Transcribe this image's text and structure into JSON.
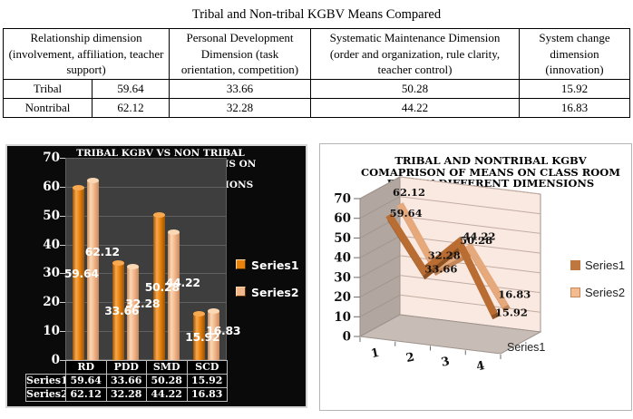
{
  "doc": {
    "title": "Tribal and Non-tribal KGBV Means Compared",
    "table": {
      "headers": [
        "Relationship dimension (involvement, affiliation, teacher support)",
        "Personal Development Dimension (task orientation, competition)",
        "Systematic Maintenance Dimension (order and organization, rule clarity, teacher control)",
        "System change dimension (innovation)"
      ],
      "rows": [
        {
          "label": "Tribal",
          "values": [
            "59.64",
            "33.66",
            "50.28",
            "15.92"
          ]
        },
        {
          "label": "Nontribal",
          "values": [
            "62.12",
            "32.28",
            "44.22",
            "16.83"
          ]
        }
      ]
    }
  },
  "chart_data": [
    {
      "type": "bar",
      "title": "TRIBAL KGBV VS NON TRIBAL KGBVCOMPARISON OF MEANS ON CLASSROOM ENV IN DIFFERENT DIMENSIONS",
      "title_lines": [
        "TRIBAL KGBV VS NON TRIBAL",
        "KGBVCOMPARISON OF MEANS ON CLASSROOM",
        "ENV IN DIFFERENT DIMENSIONS"
      ],
      "categories": [
        "RD",
        "PDD",
        "SMD",
        "SCD"
      ],
      "series": [
        {
          "name": "Series1",
          "values": [
            59.64,
            33.66,
            50.28,
            15.92
          ],
          "color": "#e8820d",
          "color_light": "#f9a94f",
          "color_dark": "#9a5406"
        },
        {
          "name": "Series2",
          "values": [
            62.12,
            32.28,
            44.22,
            16.83
          ],
          "color": "#f2b68c",
          "color_light": "#fbd8b4",
          "color_dark": "#c98a5c"
        }
      ],
      "ylim": [
        0,
        70
      ],
      "ytick": 10,
      "legend_position": "right",
      "data_table_shown": true,
      "background": "#0a0a0a",
      "plot_background": "#3e3e3e",
      "text_color": "#ffffff"
    },
    {
      "type": "line",
      "style": "3d",
      "title": "TRIBAL AND NONTRIBAL KGBV COMAPRISON OF MEANS ON CLASS ROOM ENV ON DIFFERENT DIMENSIONS",
      "title_lines": [
        "TRIBAL AND NONTRIBAL KGBV",
        "COMAPRISON OF MEANS ON CLASS ROOM",
        "ENV ON DIFFERENT DIMENSIONS"
      ],
      "categories": [
        "1",
        "2",
        "3",
        "4"
      ],
      "depth_axis_label": "Series1",
      "series": [
        {
          "name": "Series1",
          "values": [
            59.64,
            33.66,
            50.28,
            15.92
          ],
          "color": "#b96d33",
          "color_dark": "#8f5222"
        },
        {
          "name": "Series2",
          "values": [
            62.12,
            32.28,
            44.22,
            16.83
          ],
          "color": "#e5a97c",
          "color_dark": "#c4875a"
        }
      ],
      "ylim": [
        0,
        70
      ],
      "ytick": 10,
      "legend_position": "right",
      "wall_color": "#fae9e1",
      "side_wall_color": "#b2a6a0",
      "floor_color": "#c8bcb6",
      "background": "#ffffff",
      "text_color": "#111111"
    }
  ]
}
